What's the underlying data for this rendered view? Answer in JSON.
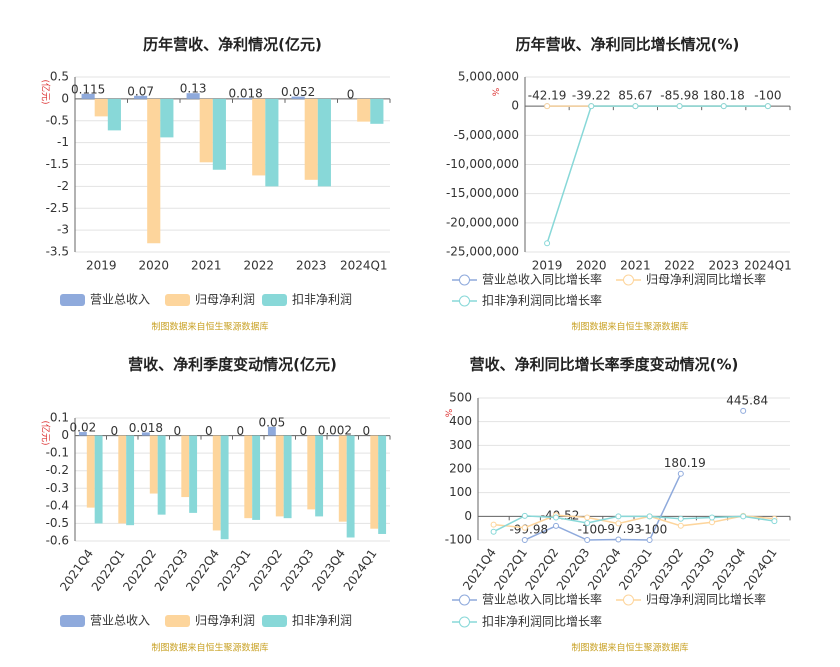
{
  "chart_data": [
    {
      "type": "bar",
      "title": "历年营收、净利情况(亿元)",
      "y_unit": "(亿元)",
      "source": "制图数据来自恒生聚源数据库",
      "categories": [
        "2019",
        "2020",
        "2021",
        "2022",
        "2023",
        "2024Q1"
      ],
      "series": [
        {
          "name": "营业总收入",
          "color": "#8faadc",
          "values": [
            0.115,
            0.07,
            0.13,
            0.018,
            0.052,
            0
          ]
        },
        {
          "name": "归母净利润",
          "color": "#fdd59c",
          "values": [
            -0.4,
            -3.3,
            -1.45,
            -1.75,
            -1.85,
            -0.52
          ]
        },
        {
          "name": "扣非净利润",
          "color": "#88d8d8",
          "values": [
            -0.72,
            -0.88,
            -1.62,
            -2.0,
            -2.0,
            -0.57
          ]
        }
      ],
      "ylim": [
        -3.5,
        0.5
      ],
      "yticks": [
        -3.5,
        -3,
        -2.5,
        -2,
        -1.5,
        -1,
        -0.5,
        0,
        0.5
      ],
      "grid": true
    },
    {
      "type": "line",
      "title": "历年营收、净利同比增长情况(%)",
      "y_unit": "%",
      "source": "制图数据来自恒生聚源数据库",
      "categories": [
        "2019",
        "2020",
        "2021",
        "2022",
        "2023",
        "2024Q1"
      ],
      "series": [
        {
          "name": "营业总收入同比增长率",
          "color": "#8faadc",
          "values": [
            -42.19,
            -39.22,
            85.67,
            -85.98,
            180.18,
            -100
          ]
        },
        {
          "name": "归母净利润同比增长率",
          "color": "#fdd59c",
          "values": [
            -40,
            -700,
            56,
            -21,
            -6,
            -72
          ]
        },
        {
          "name": "扣非净利润同比增长率",
          "color": "#88d8d8",
          "values": [
            -23500000,
            -22,
            -80,
            -23,
            0,
            72
          ]
        }
      ],
      "ylim": [
        -25000000,
        5000000
      ],
      "yticks": [
        {
          "value": -25000000,
          "label": "-25,000,000"
        },
        {
          "value": -20000000,
          "label": "-20,000,000"
        },
        {
          "value": -15000000,
          "label": "-15,000,000"
        },
        {
          "value": -10000000,
          "label": "-10,000,000"
        },
        {
          "value": -5000000,
          "label": "-5,000,000"
        },
        0,
        {
          "value": 5000000,
          "label": "5,000,000"
        }
      ],
      "grid": true
    },
    {
      "type": "bar",
      "title": "营收、净利季度变动情况(亿元)",
      "y_unit": "(亿元)",
      "source": "制图数据来自恒生聚源数据库",
      "categories": [
        "2021Q4",
        "2022Q1",
        "2022Q2",
        "2022Q3",
        "2022Q4",
        "2023Q1",
        "2023Q2",
        "2023Q3",
        "2023Q4",
        "2024Q1"
      ],
      "series": [
        {
          "name": "营业总收入",
          "color": "#8faadc",
          "values": [
            0.02,
            0,
            0.018,
            0,
            0,
            0,
            0.05,
            0,
            0.002,
            0
          ]
        },
        {
          "name": "归母净利润",
          "color": "#fdd59c",
          "values": [
            -0.41,
            -0.5,
            -0.33,
            -0.35,
            -0.54,
            -0.47,
            -0.46,
            -0.42,
            -0.49,
            -0.53
          ]
        },
        {
          "name": "扣非净利润",
          "color": "#88d8d8",
          "values": [
            -0.5,
            -0.51,
            -0.45,
            -0.44,
            -0.59,
            -0.48,
            -0.47,
            -0.46,
            -0.58,
            -0.56
          ]
        }
      ],
      "ylim": [
        -0.6,
        0.1
      ],
      "yticks": [
        -0.6,
        -0.5,
        -0.4,
        -0.3,
        -0.2,
        -0.1,
        0,
        0.1
      ],
      "grid": true
    },
    {
      "type": "line",
      "title": "营收、净利同比增长率季度变动情况(%)",
      "y_unit": "%",
      "source": "制图数据来自恒生聚源数据库",
      "categories": [
        "2021Q4",
        "2022Q1",
        "2022Q2",
        "2022Q3",
        "2022Q4",
        "2023Q1",
        "2023Q2",
        "2023Q3",
        "2023Q4",
        "2024Q1"
      ],
      "series": [
        {
          "name": "营业总收入同比增长率",
          "color": "#8faadc",
          "values": [
            null,
            -99.98,
            -40.52,
            -100,
            -97.93,
            -100,
            180.19,
            null,
            445.84,
            null
          ]
        },
        {
          "name": "归母净利润同比增长率",
          "color": "#fdd59c",
          "values": [
            -35,
            -48,
            5,
            -5,
            -30,
            0,
            -40,
            -25,
            2,
            -10
          ]
        },
        {
          "name": "扣非净利润同比增长率",
          "color": "#88d8d8",
          "values": [
            -65,
            2,
            -5,
            -28,
            0,
            0,
            -10,
            -5,
            0,
            -20
          ]
        }
      ],
      "ylim": [
        -100,
        500
      ],
      "yticks": [
        -100,
        0,
        100,
        200,
        300,
        400,
        500
      ],
      "grid": true
    }
  ]
}
